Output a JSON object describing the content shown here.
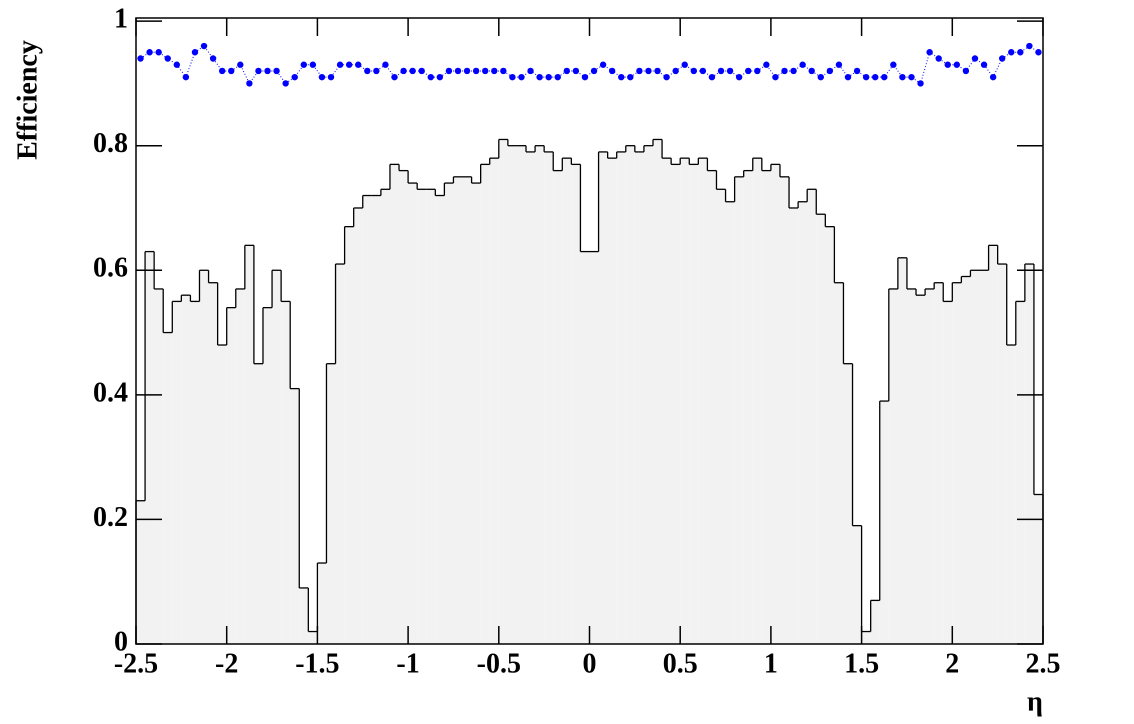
{
  "chart_data": {
    "type": "histogram",
    "x_label": "η",
    "y_label": "Efficiency",
    "bins": [
      -2.5,
      -2.45,
      -2.4,
      -2.35,
      -2.3,
      -2.25,
      -2.2,
      -2.15,
      -2.1,
      -2.05,
      -2,
      -1.95,
      -1.9,
      -1.85,
      -1.8,
      -1.75,
      -1.7,
      -1.65,
      -1.6,
      -1.55,
      -1.5,
      -1.45,
      -1.4,
      -1.35,
      -1.3,
      -1.25,
      -1.2,
      -1.15,
      -1.1,
      -1.05,
      -1,
      -0.95,
      -0.9,
      -0.85,
      -0.8,
      -0.75,
      -0.7,
      -0.65,
      -0.6,
      -0.55,
      -0.5,
      -0.45,
      -0.4,
      -0.35,
      -0.3,
      -0.25,
      -0.2,
      -0.15,
      -0.1,
      -0.05,
      0,
      0.05,
      0.1,
      0.15,
      0.2,
      0.25,
      0.3,
      0.35,
      0.4,
      0.45,
      0.5,
      0.55,
      0.6,
      0.65,
      0.7,
      0.75,
      0.8,
      0.85,
      0.9,
      0.95,
      1,
      1.05,
      1.1,
      1.15,
      1.2,
      1.25,
      1.3,
      1.35,
      1.4,
      1.45,
      1.5,
      1.55,
      1.6,
      1.65,
      1.7,
      1.75,
      1.8,
      1.85,
      1.9,
      1.95,
      2,
      2.05,
      2.1,
      2.15,
      2.2,
      2.25,
      2.3,
      2.35,
      2.4,
      2.45,
      2.5
    ],
    "series": [
      {
        "style": "step",
        "color": "#000000",
        "fill": "#f2f2f2",
        "values": [
          0.23,
          0.63,
          0.57,
          0.5,
          0.55,
          0.56,
          0.55,
          0.6,
          0.58,
          0.48,
          0.54,
          0.57,
          0.64,
          0.45,
          0.54,
          0.6,
          0.55,
          0.41,
          0.09,
          0.02,
          0.13,
          0.45,
          0.61,
          0.67,
          0.7,
          0.72,
          0.72,
          0.73,
          0.77,
          0.76,
          0.74,
          0.73,
          0.73,
          0.72,
          0.74,
          0.75,
          0.75,
          0.74,
          0.77,
          0.78,
          0.81,
          0.8,
          0.8,
          0.79,
          0.8,
          0.79,
          0.76,
          0.78,
          0.77,
          0.63,
          0.63,
          0.79,
          0.78,
          0.79,
          0.8,
          0.79,
          0.8,
          0.81,
          0.78,
          0.77,
          0.78,
          0.77,
          0.78,
          0.76,
          0.73,
          0.71,
          0.75,
          0.76,
          0.78,
          0.76,
          0.77,
          0.75,
          0.7,
          0.71,
          0.73,
          0.69,
          0.67,
          0.58,
          0.45,
          0.19,
          0.02,
          0.07,
          0.39,
          0.57,
          0.62,
          0.57,
          0.56,
          0.57,
          0.58,
          0.55,
          0.58,
          0.59,
          0.6,
          0.6,
          0.64,
          0.61,
          0.48,
          0.55,
          0.61,
          0.24
        ]
      },
      {
        "style": "markers",
        "color": "#0000ff",
        "values": [
          0.94,
          0.95,
          0.95,
          0.94,
          0.93,
          0.91,
          0.95,
          0.96,
          0.94,
          0.92,
          0.92,
          0.93,
          0.9,
          0.92,
          0.92,
          0.92,
          0.9,
          0.91,
          0.93,
          0.93,
          0.91,
          0.91,
          0.93,
          0.93,
          0.93,
          0.92,
          0.92,
          0.93,
          0.91,
          0.92,
          0.92,
          0.92,
          0.91,
          0.91,
          0.92,
          0.92,
          0.92,
          0.92,
          0.92,
          0.92,
          0.92,
          0.91,
          0.91,
          0.92,
          0.91,
          0.91,
          0.91,
          0.92,
          0.92,
          0.91,
          0.92,
          0.93,
          0.92,
          0.91,
          0.91,
          0.92,
          0.92,
          0.92,
          0.91,
          0.92,
          0.93,
          0.92,
          0.92,
          0.91,
          0.92,
          0.92,
          0.91,
          0.92,
          0.92,
          0.93,
          0.91,
          0.92,
          0.92,
          0.93,
          0.92,
          0.91,
          0.92,
          0.93,
          0.91,
          0.92,
          0.91,
          0.91,
          0.91,
          0.93,
          0.91,
          0.91,
          0.9,
          0.95,
          0.94,
          0.93,
          0.93,
          0.92,
          0.94,
          0.93,
          0.91,
          0.94,
          0.95,
          0.95,
          0.96,
          0.95
        ]
      }
    ],
    "xlim": [
      -2.5,
      2.5
    ],
    "ylim": [
      0,
      1.005
    ],
    "xticks": [
      -2.5,
      -2,
      -1.5,
      -1,
      -0.5,
      0,
      0.5,
      1,
      1.5,
      2,
      2.5
    ],
    "yticks": [
      0,
      0.2,
      0.4,
      0.6,
      0.8,
      1
    ]
  }
}
